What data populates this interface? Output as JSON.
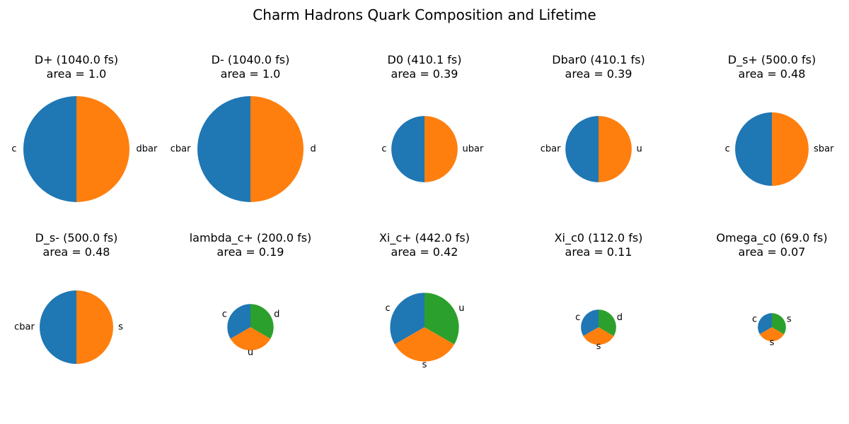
{
  "title": "Charm Hadrons Quark Composition and Lifetime",
  "colors": {
    "c0": "#1f77b4",
    "c1": "#ff7f0e",
    "c2": "#2ca02c"
  },
  "chart_data": [
    {
      "type": "pie",
      "title": "D+ (1040.0 fs)",
      "subtitle": "area = 1.0",
      "area": 1.0,
      "labels": [
        "c",
        "dbar"
      ],
      "values": [
        1,
        1
      ]
    },
    {
      "type": "pie",
      "title": "D- (1040.0 fs)",
      "subtitle": "area = 1.0",
      "area": 1.0,
      "labels": [
        "cbar",
        "d"
      ],
      "values": [
        1,
        1
      ]
    },
    {
      "type": "pie",
      "title": "D0 (410.1 fs)",
      "subtitle": "area = 0.39",
      "area": 0.39,
      "labels": [
        "c",
        "ubar"
      ],
      "values": [
        1,
        1
      ]
    },
    {
      "type": "pie",
      "title": "Dbar0 (410.1 fs)",
      "subtitle": "area = 0.39",
      "area": 0.39,
      "labels": [
        "cbar",
        "u"
      ],
      "values": [
        1,
        1
      ]
    },
    {
      "type": "pie",
      "title": "D_s+ (500.0 fs)",
      "subtitle": "area = 0.48",
      "area": 0.48,
      "labels": [
        "c",
        "sbar"
      ],
      "values": [
        1,
        1
      ]
    },
    {
      "type": "pie",
      "title": "D_s- (500.0 fs)",
      "subtitle": "area = 0.48",
      "area": 0.48,
      "labels": [
        "cbar",
        "s"
      ],
      "values": [
        1,
        1
      ]
    },
    {
      "type": "pie",
      "title": "lambda_c+ (200.0 fs)",
      "subtitle": "area = 0.19",
      "area": 0.19,
      "labels": [
        "c",
        "u",
        "d"
      ],
      "values": [
        1,
        1,
        1
      ]
    },
    {
      "type": "pie",
      "title": "Xi_c+ (442.0 fs)",
      "subtitle": "area = 0.42",
      "area": 0.42,
      "labels": [
        "c",
        "s",
        "u"
      ],
      "values": [
        1,
        1,
        1
      ]
    },
    {
      "type": "pie",
      "title": "Xi_c0 (112.0 fs)",
      "subtitle": "area = 0.11",
      "area": 0.11,
      "labels": [
        "c",
        "s",
        "d"
      ],
      "values": [
        1,
        1,
        1
      ]
    },
    {
      "type": "pie",
      "title": "Omega_c0 (69.0 fs)",
      "subtitle": "area = 0.07",
      "area": 0.07,
      "labels": [
        "c",
        "s",
        "s"
      ],
      "values": [
        1,
        1,
        1
      ]
    }
  ]
}
